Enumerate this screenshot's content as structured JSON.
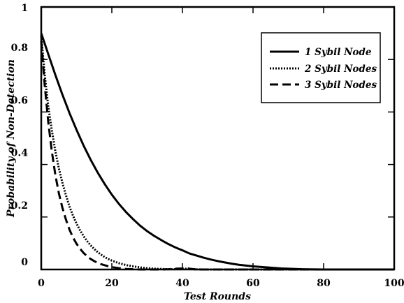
{
  "chart_data": {
    "type": "line",
    "title": "",
    "xlabel": "Test Rounds",
    "ylabel": "Probability of Non-Detection",
    "xlim": [
      0,
      100
    ],
    "ylim": [
      0,
      1
    ],
    "xticks": [
      0,
      20,
      40,
      60,
      80,
      100
    ],
    "yticks": [
      0,
      0.2,
      0.4,
      0.6,
      0.8,
      1
    ],
    "ytick_labels": [
      "0",
      "0.2",
      "0.4",
      "0.6",
      "0.8",
      "1"
    ],
    "grid": false,
    "legend_position": "top-right",
    "series": [
      {
        "name": "1 Sybil Node",
        "style": "solid",
        "color": "#000000",
        "x": [
          0,
          2,
          4,
          6,
          8,
          10,
          12,
          14,
          16,
          18,
          20,
          22,
          24,
          26,
          28,
          30,
          32,
          34,
          36,
          38,
          40,
          42,
          44,
          46,
          48,
          50,
          52,
          54,
          56,
          58,
          60,
          62,
          64,
          66,
          68,
          70,
          72,
          74,
          76,
          78,
          80,
          82,
          84,
          86,
          88,
          90,
          92,
          94,
          96,
          98,
          100
        ],
        "y": [
          0.9,
          0.82,
          0.741,
          0.666,
          0.596,
          0.532,
          0.472,
          0.418,
          0.369,
          0.325,
          0.285,
          0.25,
          0.219,
          0.192,
          0.167,
          0.146,
          0.128,
          0.112,
          0.097,
          0.084,
          0.073,
          0.061,
          0.053,
          0.045,
          0.038,
          0.032,
          0.027,
          0.022,
          0.018,
          0.015,
          0.012,
          0.01,
          0.008,
          0.006,
          0.004,
          0.003,
          0.002,
          0.001,
          0.0005,
          0.0002,
          0.0,
          0.0,
          0.0,
          0.0,
          0.0,
          0.0,
          0.0,
          0.0,
          0.0,
          0.0,
          0.0
        ]
      },
      {
        "name": "2 Sybil Nodes",
        "style": "dotted",
        "color": "#000000",
        "x": [
          0,
          1,
          2,
          3,
          4,
          5,
          6,
          7,
          8,
          9,
          10,
          11,
          12,
          13,
          14,
          15,
          16,
          17,
          18,
          19,
          20,
          22,
          24,
          26,
          28,
          30,
          32,
          34,
          36,
          38,
          40,
          41,
          42,
          44,
          46,
          50,
          60,
          70,
          80,
          90,
          100
        ],
        "y": [
          0.89,
          0.74,
          0.62,
          0.53,
          0.45,
          0.385,
          0.33,
          0.283,
          0.24,
          0.205,
          0.175,
          0.149,
          0.127,
          0.108,
          0.092,
          0.078,
          0.066,
          0.056,
          0.047,
          0.04,
          0.034,
          0.024,
          0.017,
          0.012,
          0.008,
          0.005,
          0.003,
          0.002,
          0.001,
          0.001,
          0.001,
          0.003,
          0.002,
          0.0005,
          0.0,
          0.0,
          0.0,
          0.0,
          0.0,
          0.0,
          0.0
        ]
      },
      {
        "name": "3 Sybil Nodes",
        "style": "dashed",
        "color": "#000000",
        "x": [
          0,
          1,
          2,
          3,
          4,
          5,
          6,
          7,
          8,
          9,
          10,
          11,
          12,
          13,
          14,
          15,
          16,
          17,
          18,
          19,
          20,
          22,
          24,
          26,
          28,
          30,
          32,
          34,
          36,
          38,
          40,
          41,
          42,
          44,
          46,
          50,
          60,
          70,
          80,
          90,
          100
        ],
        "y": [
          0.87,
          0.7,
          0.56,
          0.45,
          0.36,
          0.29,
          0.235,
          0.19,
          0.152,
          0.122,
          0.098,
          0.079,
          0.063,
          0.05,
          0.04,
          0.032,
          0.025,
          0.02,
          0.016,
          0.012,
          0.009,
          0.005,
          0.002,
          0.001,
          0.0,
          0.0,
          0.0,
          0.0,
          0.001,
          0.003,
          0.004,
          0.006,
          0.003,
          0.0,
          0.0,
          0.0,
          0.0,
          0.0,
          0.0,
          0.0,
          0.0
        ]
      }
    ]
  }
}
